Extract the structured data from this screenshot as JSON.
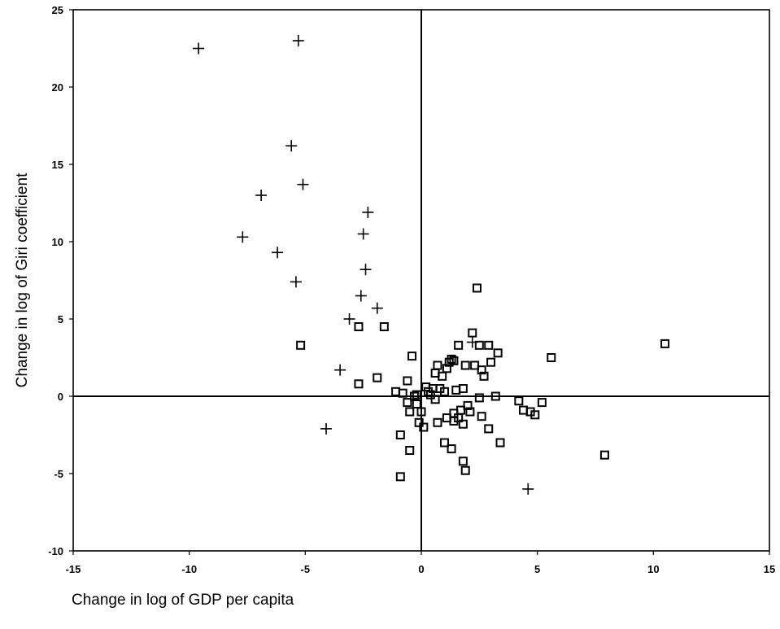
{
  "chart_data": {
    "type": "scatter",
    "title": "",
    "xlabel": "Change in log of GDP per capita",
    "ylabel": "Change in log of Giri coefficient",
    "xlim": [
      -15,
      15
    ],
    "ylim": [
      -10,
      25
    ],
    "xticks": [
      -15,
      -10,
      -5,
      0,
      5,
      10,
      15
    ],
    "yticks": [
      -10,
      -5,
      0,
      5,
      10,
      15,
      20,
      25
    ],
    "grid": false,
    "reference_lines": {
      "x": 0,
      "y": 0
    },
    "series": [
      {
        "marker": "plus",
        "points": [
          [
            -9.6,
            22.5
          ],
          [
            -5.3,
            23.0
          ],
          [
            -5.6,
            16.2
          ],
          [
            -5.1,
            13.7
          ],
          [
            -6.9,
            13.0
          ],
          [
            -7.7,
            10.3
          ],
          [
            -6.2,
            9.3
          ],
          [
            -5.4,
            7.4
          ],
          [
            -2.3,
            11.9
          ],
          [
            -2.5,
            10.5
          ],
          [
            -2.4,
            8.2
          ],
          [
            -2.6,
            6.5
          ],
          [
            -1.9,
            5.7
          ],
          [
            -3.1,
            5.0
          ],
          [
            -3.5,
            1.7
          ],
          [
            -4.1,
            -2.1
          ],
          [
            4.6,
            -6.0
          ],
          [
            2.2,
            3.5
          ]
        ]
      },
      {
        "marker": "square",
        "points": [
          [
            -5.2,
            3.3
          ],
          [
            -2.7,
            4.5
          ],
          [
            -1.6,
            4.5
          ],
          [
            -2.7,
            0.8
          ],
          [
            -1.9,
            1.2
          ],
          [
            -0.4,
            2.6
          ],
          [
            -0.6,
            1.0
          ],
          [
            -1.1,
            0.3
          ],
          [
            -0.8,
            0.2
          ],
          [
            -0.6,
            -0.4
          ],
          [
            -0.5,
            -1.0
          ],
          [
            -0.3,
            0.0
          ],
          [
            -0.2,
            -0.5
          ],
          [
            -0.1,
            -1.7
          ],
          [
            0.0,
            -1.0
          ],
          [
            0.1,
            -2.0
          ],
          [
            -0.9,
            -2.5
          ],
          [
            -0.5,
            -3.5
          ],
          [
            -0.9,
            -5.2
          ],
          [
            0.3,
            0.3
          ],
          [
            0.5,
            0.5
          ],
          [
            0.6,
            1.5
          ],
          [
            0.7,
            2.0
          ],
          [
            0.8,
            0.5
          ],
          [
            0.9,
            1.3
          ],
          [
            1.0,
            0.3
          ],
          [
            1.1,
            1.8
          ],
          [
            1.2,
            2.2
          ],
          [
            1.3,
            2.4
          ],
          [
            1.4,
            2.3
          ],
          [
            1.5,
            0.4
          ],
          [
            1.6,
            3.3
          ],
          [
            1.8,
            0.5
          ],
          [
            1.9,
            2.0
          ],
          [
            2.0,
            -0.6
          ],
          [
            2.1,
            -1.0
          ],
          [
            2.2,
            4.1
          ],
          [
            2.3,
            2.0
          ],
          [
            2.4,
            7.0
          ],
          [
            2.5,
            3.3
          ],
          [
            2.5,
            -0.1
          ],
          [
            2.6,
            1.7
          ],
          [
            2.7,
            1.3
          ],
          [
            2.9,
            3.3
          ],
          [
            3.0,
            2.2
          ],
          [
            3.3,
            2.8
          ],
          [
            3.2,
            0.0
          ],
          [
            3.4,
            -3.0
          ],
          [
            2.9,
            -2.1
          ],
          [
            2.6,
            -1.3
          ],
          [
            1.8,
            -1.8
          ],
          [
            1.6,
            -1.4
          ],
          [
            1.4,
            -1.1
          ],
          [
            1.3,
            -3.4
          ],
          [
            1.0,
            -3.0
          ],
          [
            1.1,
            -1.4
          ],
          [
            0.7,
            -1.7
          ],
          [
            1.8,
            -4.2
          ],
          [
            1.9,
            -4.8
          ],
          [
            4.2,
            -0.3
          ],
          [
            4.4,
            -0.9
          ],
          [
            4.7,
            -1.0
          ],
          [
            4.9,
            -1.2
          ],
          [
            5.2,
            -0.4
          ],
          [
            5.6,
            2.5
          ],
          [
            7.9,
            -3.8
          ],
          [
            10.5,
            3.4
          ],
          [
            0.2,
            0.6
          ],
          [
            0.4,
            0.1
          ],
          [
            0.6,
            -0.2
          ],
          [
            -0.2,
            0.1
          ],
          [
            1.4,
            -1.6
          ],
          [
            1.7,
            -0.9
          ]
        ]
      }
    ]
  }
}
